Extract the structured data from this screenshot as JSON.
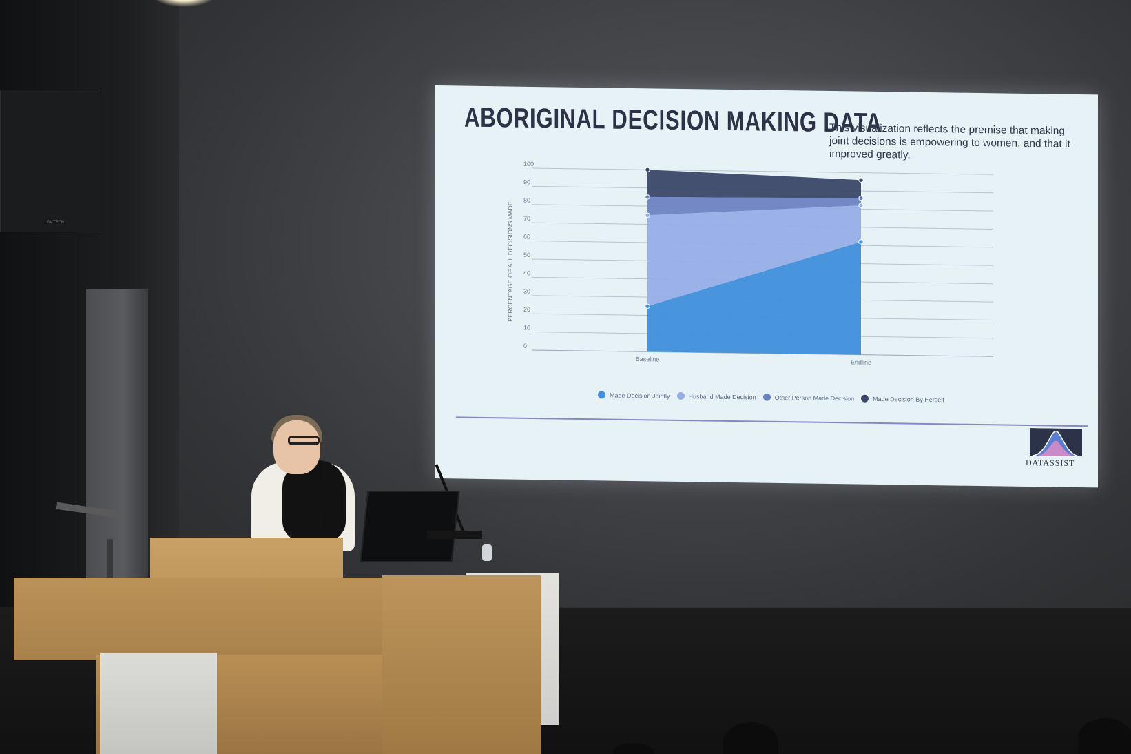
{
  "slide": {
    "title": "ABORIGINAL DECISION MAKING DATA",
    "description": "This visualization reflects the premise that making joint decisions is empowering to women, and that it improved greatly.",
    "logo_text": "DATASSIST"
  },
  "speaker_label": "FA TECH",
  "chart_data": {
    "type": "area",
    "stacked": true,
    "x": [
      "Baseline",
      "Endline"
    ],
    "ylabel": "PERCENTAGE OF ALL DECISIONS MADE",
    "ylim": [
      0,
      100
    ],
    "yticks": [
      0,
      10,
      20,
      30,
      40,
      50,
      60,
      70,
      80,
      90,
      100
    ],
    "grid": true,
    "legend_position": "bottom",
    "series": [
      {
        "name": "Made Decision Jointly",
        "values": [
          25,
          62
        ],
        "color": "#3f8fdc"
      },
      {
        "name": "Husband Made Decision",
        "values": [
          50,
          20
        ],
        "color": "#96aee6"
      },
      {
        "name": "Other Person Made Decision",
        "values": [
          10,
          4
        ],
        "color": "#6d82c2"
      },
      {
        "name": "Made Decision By Herself",
        "values": [
          15,
          10
        ],
        "color": "#3a4768"
      }
    ]
  }
}
